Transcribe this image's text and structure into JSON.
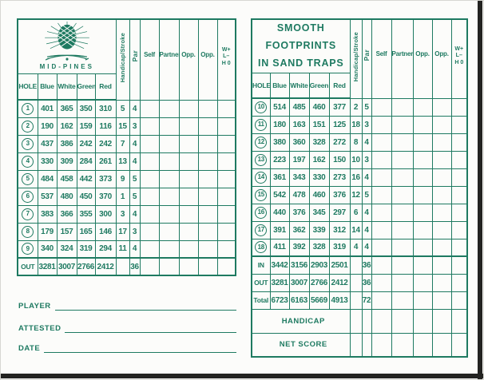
{
  "colors": {
    "green": "#1e7a61",
    "scan_edge": "#232321",
    "page_background": "#fcfcfa"
  },
  "columns": {
    "hole": "HOLE",
    "blue": "Blue",
    "white": "White",
    "green": "Green",
    "red": "Red",
    "handicap": "Handicap/Stroke",
    "par": "Par",
    "self": "Self",
    "partner": "Partner",
    "opp1": "Opp.",
    "opp2": "Opp.",
    "wlh": [
      "W+",
      "L–",
      "H 0"
    ]
  },
  "left_panel": {
    "logo_text": "MID-PINES",
    "hole_rows": [
      {
        "hole": "1",
        "values": [
          401,
          365,
          350,
          310,
          5,
          4
        ]
      },
      {
        "hole": "2",
        "values": [
          190,
          162,
          159,
          116,
          15,
          3
        ]
      },
      {
        "hole": "3",
        "values": [
          437,
          386,
          242,
          242,
          7,
          4
        ]
      },
      {
        "hole": "4",
        "values": [
          330,
          309,
          284,
          261,
          13,
          4
        ]
      },
      {
        "hole": "5",
        "values": [
          484,
          458,
          442,
          373,
          9,
          5
        ]
      },
      {
        "hole": "6",
        "values": [
          537,
          480,
          450,
          370,
          1,
          5
        ]
      },
      {
        "hole": "7",
        "values": [
          383,
          366,
          355,
          300,
          3,
          4
        ]
      },
      {
        "hole": "8",
        "values": [
          179,
          157,
          165,
          146,
          17,
          3
        ]
      },
      {
        "hole": "9",
        "values": [
          340,
          324,
          319,
          294,
          11,
          4
        ]
      }
    ],
    "summary_rows": [
      {
        "label": "OUT",
        "values": [
          3281,
          3007,
          2766,
          2412,
          "",
          36
        ]
      }
    ],
    "fields": [
      {
        "label": "PLAYER"
      },
      {
        "label": "ATTESTED"
      },
      {
        "label": "DATE"
      }
    ]
  },
  "right_panel": {
    "title_lines": [
      "SMOOTH FOOTPRINTS",
      "IN SAND TRAPS"
    ],
    "hole_rows": [
      {
        "hole": "10",
        "values": [
          514,
          485,
          460,
          377,
          2,
          5
        ]
      },
      {
        "hole": "11",
        "values": [
          180,
          163,
          151,
          125,
          18,
          3
        ]
      },
      {
        "hole": "12",
        "values": [
          380,
          360,
          328,
          272,
          8,
          4
        ]
      },
      {
        "hole": "13",
        "values": [
          223,
          197,
          162,
          150,
          10,
          3
        ]
      },
      {
        "hole": "14",
        "values": [
          361,
          343,
          330,
          273,
          16,
          4
        ]
      },
      {
        "hole": "15",
        "values": [
          542,
          478,
          460,
          376,
          12,
          5
        ]
      },
      {
        "hole": "16",
        "values": [
          440,
          376,
          345,
          297,
          6,
          4
        ]
      },
      {
        "hole": "17",
        "values": [
          391,
          362,
          339,
          312,
          14,
          4
        ]
      },
      {
        "hole": "18",
        "values": [
          411,
          392,
          328,
          319,
          4,
          4
        ]
      }
    ],
    "summary_rows": [
      {
        "label": "IN",
        "values": [
          3442,
          3156,
          2903,
          2501,
          "",
          36
        ]
      },
      {
        "label": "OUT",
        "values": [
          3281,
          3007,
          2766,
          2412,
          "",
          36
        ]
      },
      {
        "label": "Total",
        "values": [
          6723,
          6163,
          5669,
          4913,
          "",
          72
        ]
      }
    ],
    "handicap_label": "HANDICAP",
    "net_score_label": "NET SCORE"
  }
}
